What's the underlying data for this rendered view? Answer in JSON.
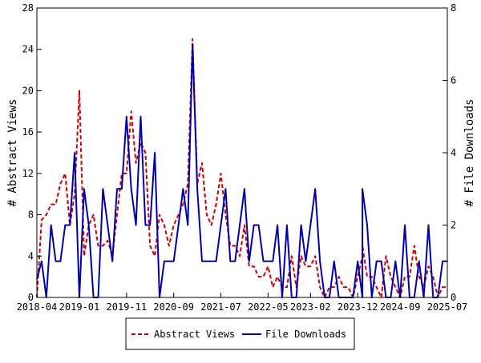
{
  "chart_data": {
    "type": "line",
    "xlabel": "",
    "ylabel": "# Abstract Views",
    "y2label": "# File Downloads",
    "ylim": [
      0,
      28
    ],
    "y2lim": [
      0,
      8
    ],
    "y_ticks": [
      0,
      4,
      8,
      12,
      16,
      20,
      24,
      28
    ],
    "y2_ticks": [
      0,
      2,
      4,
      6,
      8
    ],
    "x_tick_labels": [
      "2018-04",
      "2019-01",
      "2019-11",
      "2020-09",
      "2021-07",
      "2022-05",
      "2023-02",
      "2023-12",
      "2024-09",
      "2025-07"
    ],
    "legend_position": "bottom-center",
    "x_start": "2018-04",
    "x_end": "2025-07",
    "series": [
      {
        "name": "Abstract Views",
        "axis": "left",
        "color": "#cc0000",
        "style": "dashed",
        "points": [
          [
            "2018-04",
            0
          ],
          [
            "2018-05",
            7.5
          ],
          [
            "2018-06",
            8
          ],
          [
            "2018-07",
            9
          ],
          [
            "2018-08",
            9
          ],
          [
            "2018-09",
            11
          ],
          [
            "2018-10",
            12
          ],
          [
            "2018-11",
            7
          ],
          [
            "2018-12",
            10
          ],
          [
            "2019-01",
            20
          ],
          [
            "2019-02",
            4
          ],
          [
            "2019-03",
            7
          ],
          [
            "2019-04",
            8
          ],
          [
            "2019-05",
            5
          ],
          [
            "2019-06",
            5
          ],
          [
            "2019-07",
            5.5
          ],
          [
            "2019-08",
            4
          ],
          [
            "2019-09",
            8
          ],
          [
            "2019-10",
            12
          ],
          [
            "2019-11",
            12
          ],
          [
            "2019-12",
            18
          ],
          [
            "2020-01",
            13
          ],
          [
            "2020-02",
            15
          ],
          [
            "2020-03",
            14
          ],
          [
            "2020-04",
            5
          ],
          [
            "2020-05",
            4
          ],
          [
            "2020-06",
            8
          ],
          [
            "2020-07",
            7
          ],
          [
            "2020-08",
            5
          ],
          [
            "2020-09",
            7
          ],
          [
            "2020-10",
            8
          ],
          [
            "2020-11",
            9
          ],
          [
            "2020-12",
            11
          ],
          [
            "2021-01",
            25
          ],
          [
            "2021-02",
            11
          ],
          [
            "2021-03",
            13
          ],
          [
            "2021-04",
            8
          ],
          [
            "2021-05",
            7
          ],
          [
            "2021-06",
            9
          ],
          [
            "2021-07",
            12
          ],
          [
            "2021-08",
            8
          ],
          [
            "2021-09",
            5
          ],
          [
            "2021-10",
            5
          ],
          [
            "2021-11",
            4
          ],
          [
            "2021-12",
            7
          ],
          [
            "2022-01",
            3
          ],
          [
            "2022-02",
            3
          ],
          [
            "2022-03",
            2
          ],
          [
            "2022-04",
            2
          ],
          [
            "2022-05",
            3
          ],
          [
            "2022-06",
            1
          ],
          [
            "2022-07",
            2
          ],
          [
            "2022-08",
            1
          ],
          [
            "2022-09",
            1
          ],
          [
            "2022-10",
            4
          ],
          [
            "2022-11",
            1
          ],
          [
            "2022-12",
            4
          ],
          [
            "2023-01",
            3
          ],
          [
            "2023-02",
            3
          ],
          [
            "2023-03",
            4
          ],
          [
            "2023-04",
            1
          ],
          [
            "2023-05",
            0
          ],
          [
            "2023-06",
            1
          ],
          [
            "2023-07",
            1
          ],
          [
            "2023-08",
            2
          ],
          [
            "2023-09",
            1
          ],
          [
            "2023-10",
            1
          ],
          [
            "2023-11",
            0
          ],
          [
            "2023-12",
            2
          ],
          [
            "2023-13",
            4
          ],
          [
            "2024-01",
            5
          ],
          [
            "2024-02",
            2
          ],
          [
            "2024-03",
            2
          ],
          [
            "2024-04",
            1
          ],
          [
            "2024-05",
            0
          ],
          [
            "2024-06",
            4
          ],
          [
            "2024-07",
            2
          ],
          [
            "2024-08",
            1
          ],
          [
            "2024-09",
            0
          ],
          [
            "2024-10",
            2
          ],
          [
            "2024-11",
            2
          ],
          [
            "2024-12",
            5
          ],
          [
            "2025-01",
            2
          ],
          [
            "2025-02",
            1
          ],
          [
            "2025-03",
            3
          ],
          [
            "2025-04",
            2
          ],
          [
            "2025-05",
            0
          ],
          [
            "2025-06",
            1
          ],
          [
            "2025-07",
            1
          ]
        ]
      },
      {
        "name": "File Downloads",
        "axis": "right",
        "color": "#0000aa",
        "style": "solid",
        "points": [
          [
            "2018-04",
            0.5
          ],
          [
            "2018-05",
            1
          ],
          [
            "2018-06",
            0
          ],
          [
            "2018-07",
            2
          ],
          [
            "2018-08",
            1
          ],
          [
            "2018-09",
            1
          ],
          [
            "2018-10",
            2
          ],
          [
            "2018-11",
            2
          ],
          [
            "2018-12",
            4
          ],
          [
            "2019-01",
            0
          ],
          [
            "2019-02",
            3
          ],
          [
            "2019-03",
            2
          ],
          [
            "2019-04",
            0
          ],
          [
            "2019-05",
            0
          ],
          [
            "2019-06",
            3
          ],
          [
            "2019-07",
            2
          ],
          [
            "2019-08",
            1
          ],
          [
            "2019-09",
            3
          ],
          [
            "2019-10",
            3
          ],
          [
            "2019-11",
            5
          ],
          [
            "2019-12",
            3
          ],
          [
            "2020-01",
            2
          ],
          [
            "2020-02",
            5
          ],
          [
            "2020-03",
            2
          ],
          [
            "2020-04",
            2
          ],
          [
            "2020-05",
            4
          ],
          [
            "2020-06",
            0
          ],
          [
            "2020-07",
            1
          ],
          [
            "2020-08",
            1
          ],
          [
            "2020-09",
            1
          ],
          [
            "2020-10",
            2
          ],
          [
            "2020-11",
            3
          ],
          [
            "2020-12",
            2
          ],
          [
            "2021-01",
            7
          ],
          [
            "2021-02",
            3
          ],
          [
            "2021-03",
            1
          ],
          [
            "2021-04",
            1
          ],
          [
            "2021-05",
            1
          ],
          [
            "2021-06",
            1
          ],
          [
            "2021-07",
            2
          ],
          [
            "2021-08",
            3
          ],
          [
            "2021-09",
            1
          ],
          [
            "2021-10",
            1
          ],
          [
            "2021-11",
            2
          ],
          [
            "2021-12",
            3
          ],
          [
            "2022-01",
            1
          ],
          [
            "2022-02",
            2
          ],
          [
            "2022-03",
            2
          ],
          [
            "2022-04",
            1
          ],
          [
            "2022-05",
            1
          ],
          [
            "2022-06",
            1
          ],
          [
            "2022-07",
            2
          ],
          [
            "2022-08",
            0
          ],
          [
            "2022-09",
            2
          ],
          [
            "2022-10",
            0
          ],
          [
            "2022-11",
            0
          ],
          [
            "2022-12",
            2
          ],
          [
            "2023-01",
            1
          ],
          [
            "2023-02",
            2
          ],
          [
            "2023-03",
            3
          ],
          [
            "2023-04",
            1
          ],
          [
            "2023-05",
            0
          ],
          [
            "2023-06",
            0
          ],
          [
            "2023-07",
            1
          ],
          [
            "2023-08",
            0
          ],
          [
            "2023-09",
            0
          ],
          [
            "2023-10",
            0
          ],
          [
            "2023-11",
            0
          ],
          [
            "2023-12",
            1
          ],
          [
            "2023-13",
            0
          ],
          [
            "2024-01",
            3
          ],
          [
            "2024-02",
            2
          ],
          [
            "2024-03",
            0
          ],
          [
            "2024-04",
            1
          ],
          [
            "2024-05",
            1
          ],
          [
            "2024-06",
            0
          ],
          [
            "2024-07",
            0
          ],
          [
            "2024-08",
            1
          ],
          [
            "2024-09",
            0
          ],
          [
            "2024-10",
            2
          ],
          [
            "2024-11",
            0
          ],
          [
            "2024-12",
            0
          ],
          [
            "2025-01",
            1
          ],
          [
            "2025-02",
            0
          ],
          [
            "2025-03",
            2
          ],
          [
            "2025-04",
            0
          ],
          [
            "2025-05",
            0
          ],
          [
            "2025-06",
            1
          ],
          [
            "2025-07",
            1
          ]
        ]
      }
    ]
  }
}
